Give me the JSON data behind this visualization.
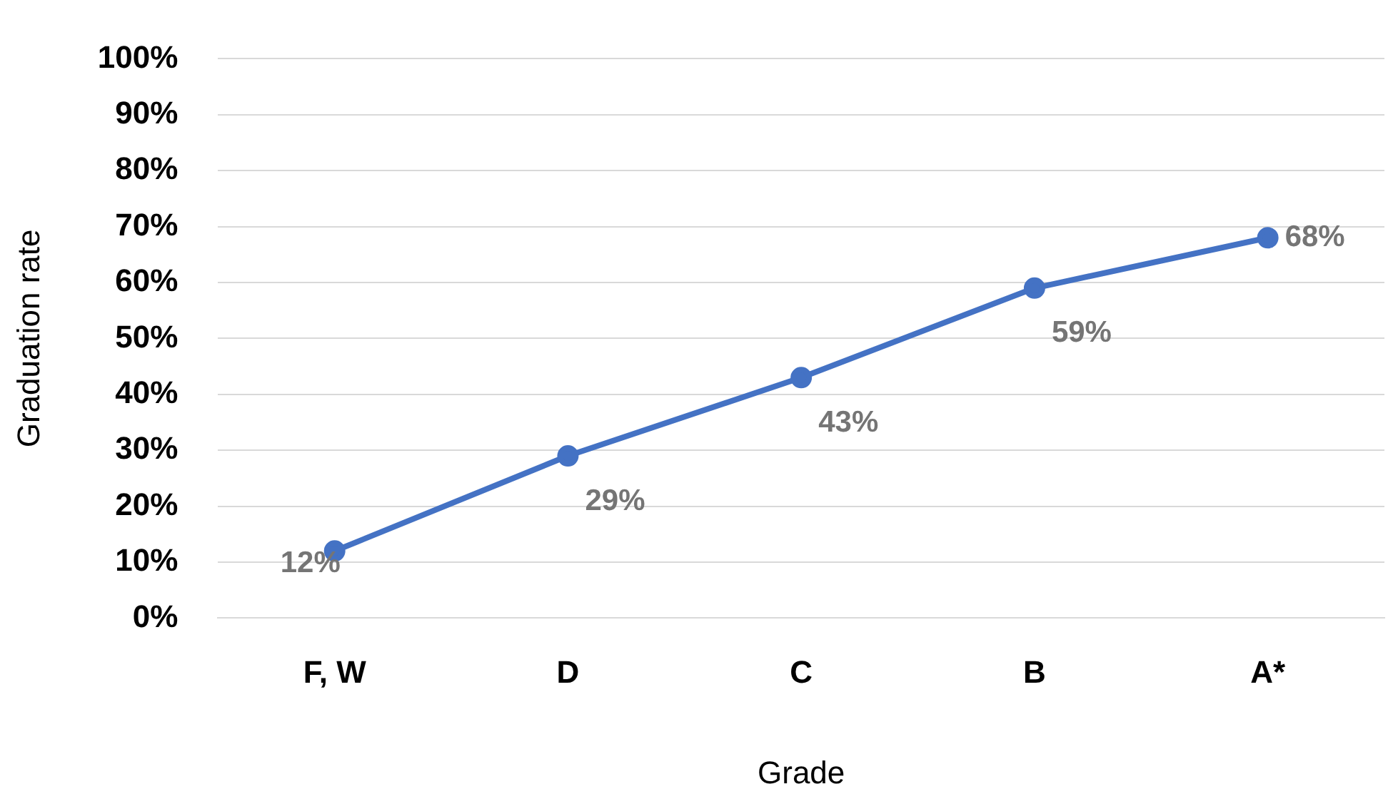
{
  "chart_data": {
    "type": "line",
    "xlabel": "Grade",
    "ylabel": "Graduation rate",
    "categories": [
      "F, W",
      "D",
      "C",
      "B",
      "A*"
    ],
    "series": [
      {
        "color": "#4472c4",
        "values": [
          12,
          29,
          43,
          59,
          68
        ],
        "value_labels": [
          "12%",
          "29%",
          "43%",
          "59%",
          "68%"
        ]
      }
    ],
    "ylim": [
      0,
      100
    ],
    "yticks": [
      {
        "value": 0,
        "label": "0%"
      },
      {
        "value": 10,
        "label": "10%"
      },
      {
        "value": 20,
        "label": "20%"
      },
      {
        "value": 30,
        "label": "30%"
      },
      {
        "value": 40,
        "label": "40%"
      },
      {
        "value": 50,
        "label": "50%"
      },
      {
        "value": 60,
        "label": "60%"
      },
      {
        "value": 70,
        "label": "70%"
      },
      {
        "value": 80,
        "label": "80%"
      },
      {
        "value": 90,
        "label": "90%"
      },
      {
        "value": 100,
        "label": "100%"
      }
    ],
    "grid": "y",
    "marker": "circle",
    "line_style": "solid"
  }
}
